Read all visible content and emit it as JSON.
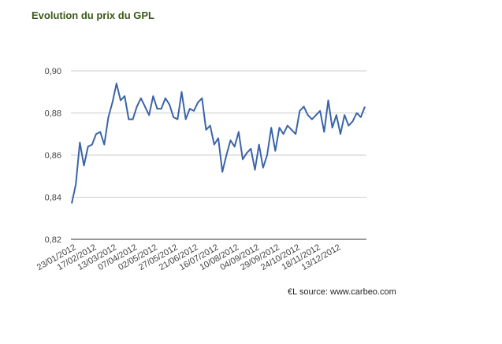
{
  "chart_data": {
    "type": "line",
    "title": "Evolution du prix du GPL",
    "source": "€L source: www.carbeo.com",
    "categories": [
      "23/01/2012",
      null,
      null,
      null,
      null,
      "17/02/2012",
      null,
      null,
      null,
      null,
      "13/03/2012",
      null,
      null,
      null,
      null,
      "07/04/2012",
      null,
      null,
      null,
      null,
      "02/05/2012",
      null,
      null,
      null,
      null,
      "27/05/2012",
      null,
      null,
      null,
      null,
      "21/06/2012",
      null,
      null,
      null,
      null,
      "16/07/2012",
      null,
      null,
      null,
      null,
      "10/08/2012",
      null,
      null,
      null,
      null,
      "04/09/2012",
      null,
      null,
      null,
      null,
      "29/09/2012",
      null,
      null,
      null,
      null,
      "24/10/2012",
      null,
      null,
      null,
      null,
      "18/11/2012",
      null,
      null,
      null,
      null,
      "13/12/2012",
      null,
      null,
      null,
      null,
      null,
      null,
      null
    ],
    "values": [
      0.837,
      0.846,
      0.866,
      0.855,
      0.864,
      0.865,
      0.87,
      0.871,
      0.865,
      0.878,
      0.885,
      0.894,
      0.886,
      0.888,
      0.877,
      0.877,
      0.883,
      0.887,
      0.883,
      0.879,
      0.888,
      0.882,
      0.882,
      0.887,
      0.884,
      0.878,
      0.877,
      0.89,
      0.877,
      0.882,
      0.881,
      0.885,
      0.887,
      0.872,
      0.874,
      0.865,
      0.868,
      0.852,
      0.86,
      0.867,
      0.864,
      0.871,
      0.858,
      0.861,
      0.863,
      0.853,
      0.865,
      0.854,
      0.86,
      0.873,
      0.862,
      0.873,
      0.87,
      0.874,
      0.872,
      0.87,
      0.881,
      0.883,
      0.879,
      0.877,
      0.879,
      0.881,
      0.871,
      0.886,
      0.873,
      0.879,
      0.87,
      0.879,
      0.874,
      0.876,
      0.88,
      0.878,
      0.883
    ],
    "color": "#3b64a8",
    "ylim": [
      0.82,
      0.9
    ],
    "yticks": [
      {
        "value": 0.82,
        "label": "0,82"
      },
      {
        "value": 0.84,
        "label": "0,84"
      },
      {
        "value": 0.86,
        "label": "0,86"
      },
      {
        "value": 0.88,
        "label": "0,88"
      },
      {
        "value": 0.9,
        "label": "0,90"
      }
    ],
    "grid": true
  }
}
